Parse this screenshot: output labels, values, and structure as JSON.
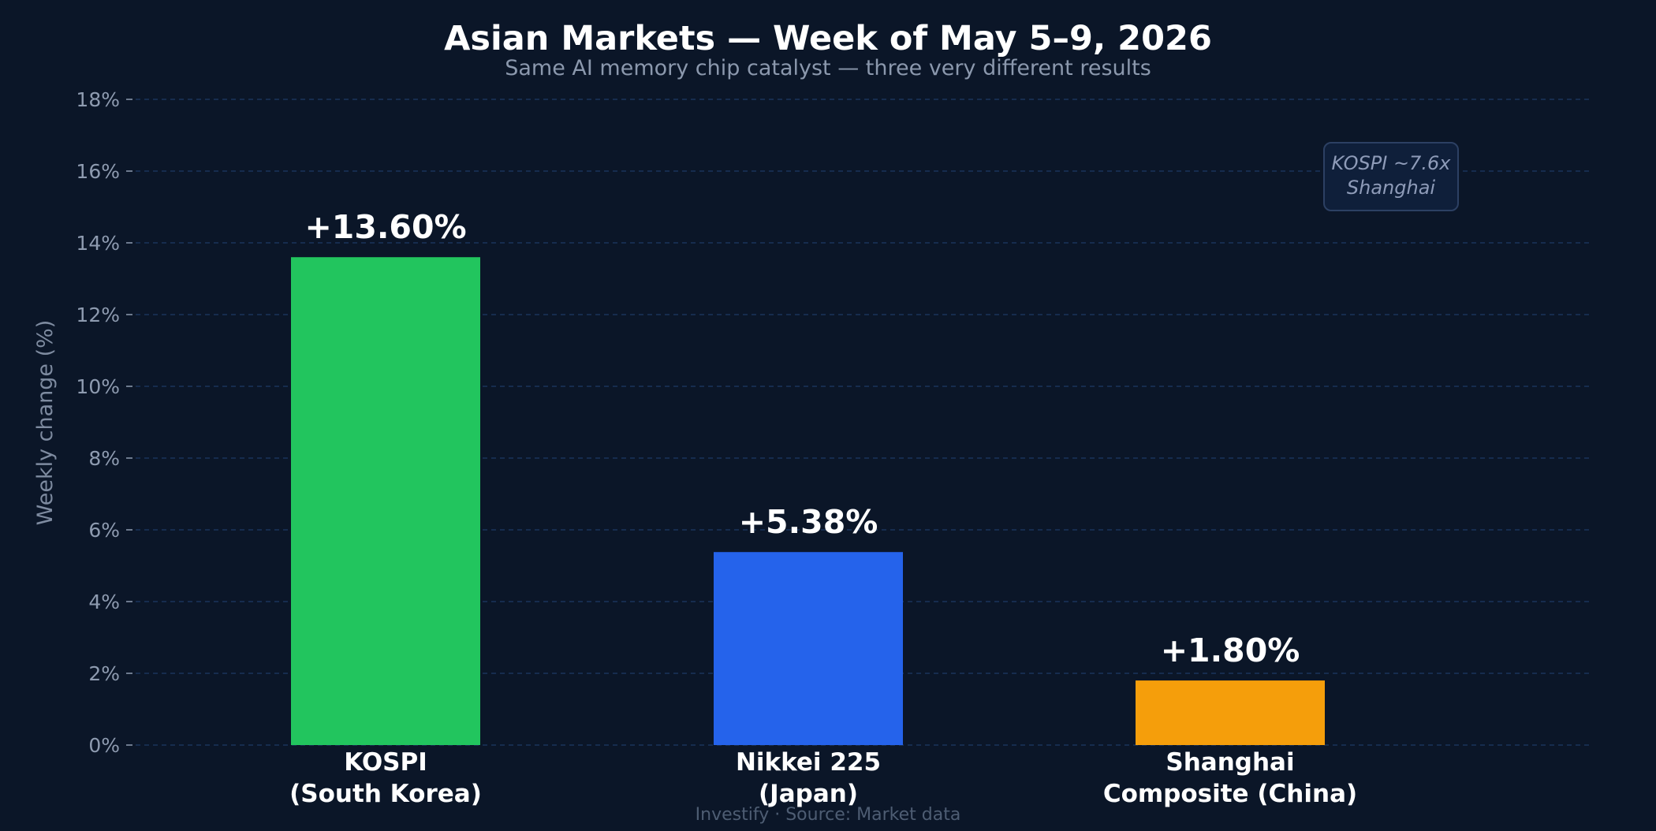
{
  "colors": {
    "background": "#0b1628",
    "grid": "#1e3a66",
    "tick_text": "#8e9bb0",
    "axis_label": "#7e8ba0",
    "title": "#ffffff",
    "subtitle": "#8b98ad",
    "value_label": "#ffffff",
    "category_label": "#ffffff",
    "annotation_text": "#8e9bb8",
    "annotation_border": "#2c4063",
    "annotation_fill": "#0f1f3a",
    "source": "#4e5d73"
  },
  "chart_data": {
    "type": "bar",
    "title": "Asian Markets — Week of May 5–9, 2026",
    "subtitle": "Same AI memory chip catalyst — three very different results",
    "xlabel": "",
    "ylabel": "Weekly change (%)",
    "ylim": [
      0,
      18
    ],
    "yticks": [
      0,
      2,
      4,
      6,
      8,
      10,
      12,
      14,
      16,
      18
    ],
    "ytick_labels": [
      "0%",
      "2%",
      "4%",
      "6%",
      "8%",
      "10%",
      "12%",
      "14%",
      "16%",
      "18%"
    ],
    "grid": true,
    "categories": [
      [
        "KOSPI",
        "(South Korea)"
      ],
      [
        "Nikkei 225",
        "(Japan)"
      ],
      [
        "Shanghai",
        "Composite (China)"
      ]
    ],
    "values": [
      13.6,
      5.38,
      1.8
    ],
    "value_labels": [
      "+13.60%",
      "+5.38%",
      "+1.80%"
    ],
    "bar_colors": [
      "#22c55e",
      "#2563eb",
      "#f59e0b"
    ],
    "annotation": [
      "KOSPI ~7.6x",
      "Shanghai"
    ],
    "annotation_placement": "top-right"
  },
  "footer": {
    "source": "Investify · Source: Market data"
  }
}
